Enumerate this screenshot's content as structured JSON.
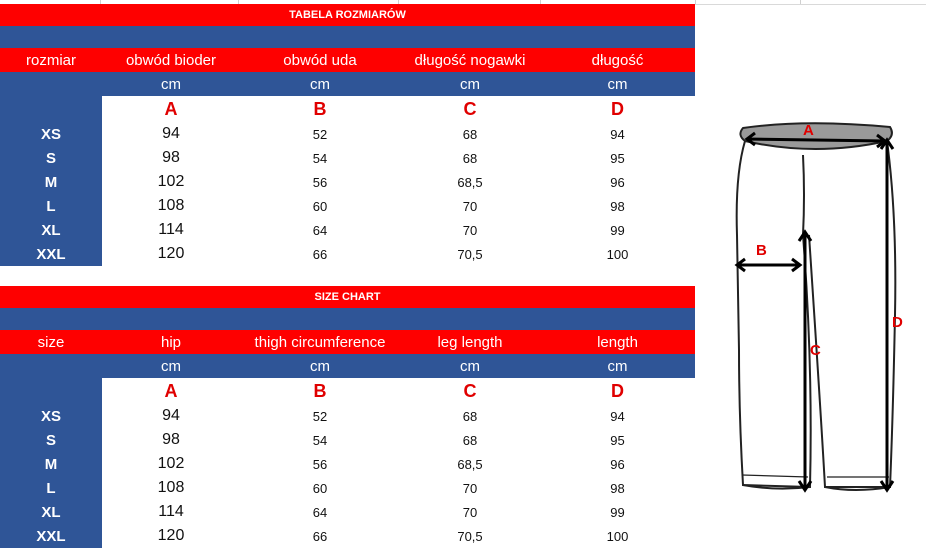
{
  "colors": {
    "red": "#fe0000",
    "blue": "#2f5597",
    "letter": "#e00000"
  },
  "tables": [
    {
      "title": "TABELA ROZMIARÓW",
      "headers": [
        "rozmiar",
        "obwód bioder",
        "obwód uda",
        "długość nogawki",
        "długość"
      ],
      "units": [
        "",
        "cm",
        "cm",
        "cm",
        "cm"
      ],
      "letters": [
        "",
        "A",
        "B",
        "C",
        "D"
      ],
      "rows": [
        [
          "XS",
          "94",
          "52",
          "68",
          "94"
        ],
        [
          "S",
          "98",
          "54",
          "68",
          "95"
        ],
        [
          "M",
          "102",
          "56",
          "68,5",
          "96"
        ],
        [
          "L",
          "108",
          "60",
          "70",
          "98"
        ],
        [
          "XL",
          "114",
          "64",
          "70",
          "99"
        ],
        [
          "XXL",
          "120",
          "66",
          "70,5",
          "100"
        ]
      ]
    },
    {
      "title": "SIZE CHART",
      "headers": [
        "size",
        "hip",
        "thigh circumference",
        "leg length",
        "length"
      ],
      "units": [
        "",
        "cm",
        "cm",
        "cm",
        "cm"
      ],
      "letters": [
        "",
        "A",
        "B",
        "C",
        "D"
      ],
      "rows": [
        [
          "XS",
          "94",
          "52",
          "68",
          "94"
        ],
        [
          "S",
          "98",
          "54",
          "68",
          "95"
        ],
        [
          "M",
          "102",
          "56",
          "68,5",
          "96"
        ],
        [
          "L",
          "108",
          "60",
          "70",
          "98"
        ],
        [
          "XL",
          "114",
          "64",
          "70",
          "99"
        ],
        [
          "XXL",
          "120",
          "66",
          "70,5",
          "100"
        ]
      ]
    }
  ],
  "diagram": {
    "labels": [
      "A",
      "B",
      "C",
      "D"
    ]
  }
}
